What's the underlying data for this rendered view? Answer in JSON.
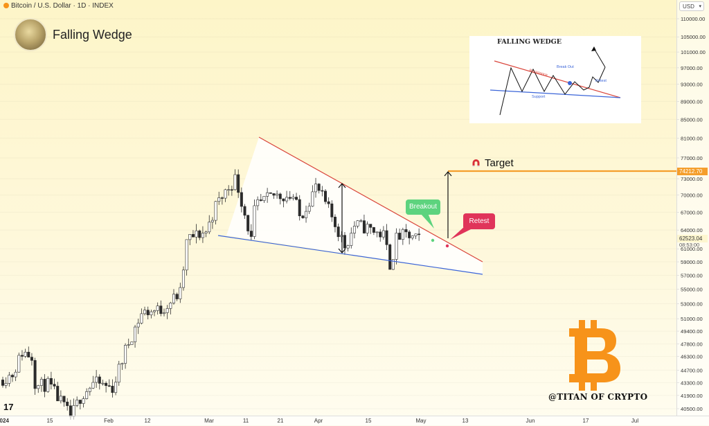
{
  "header": {
    "symbol_line": "Bitcoin / U.S. Dollar · 1D · INDEX"
  },
  "idea": {
    "title": "Falling Wedge",
    "watermark": "@TITAN OF CRYPTO",
    "tv_logo": "17"
  },
  "price_axis": {
    "currency": "USD",
    "target_tag": "74212.70",
    "last_price_tag": "62523.04",
    "countdown": "08:53:00"
  },
  "labels": {
    "target": "Target",
    "breakout": "Breakout",
    "retest": "Retest"
  },
  "inset": {
    "title": "FALLING WEDGE",
    "resistance": "Resistance",
    "support": "Support",
    "breakout": "Break Out",
    "retest": "Retest"
  },
  "colors": {
    "up_candle": "#ffffff",
    "down_candle": "#2b2b2b",
    "resistance": "#d9453b",
    "support": "#3a64d8",
    "target_line": "#f59e2b",
    "breakout": "#5dd37e",
    "retest": "#e0345a",
    "bitcoin": "#f7931a"
  },
  "chart_data": {
    "type": "candlestick",
    "interval": "1D",
    "scale": "log",
    "y_tick_labels": [
      "40500.00",
      "41900.00",
      "43300.00",
      "44700.00",
      "46300.00",
      "47800.00",
      "49400.00",
      "51000.00",
      "53000.00",
      "55000.00",
      "57000.00",
      "59000.00",
      "61000.00",
      "64000.00",
      "67000.00",
      "70000.00",
      "73000.00",
      "77000.00",
      "81000.00",
      "85000.00",
      "89000.00",
      "93000.00",
      "97000.00",
      "101000.00",
      "105000.00",
      "110000.00"
    ],
    "x_tick_labels": [
      "2024",
      "15",
      "Feb",
      "12",
      "Mar",
      "11",
      "21",
      "Apr",
      "15",
      "May",
      "13",
      "Jun",
      "17",
      "Jul"
    ],
    "key_levels": {
      "target": 74212.7,
      "last_price": 62523.04
    },
    "trendlines": {
      "resistance": [
        [
          "2024-03-14",
          81000
        ],
        [
          "2024-05-20",
          58900
        ]
      ],
      "support": [
        [
          "2024-03-01",
          62800
        ],
        [
          "2024-05-20",
          56900
        ]
      ]
    },
    "price_path": [
      [
        "2024-01-01",
        43600
      ],
      [
        "2024-01-05",
        44300
      ],
      [
        "2024-01-08",
        46900
      ],
      [
        "2024-01-11",
        46300
      ],
      [
        "2024-01-12",
        42900
      ],
      [
        "2024-01-16",
        43100
      ],
      [
        "2024-01-19",
        41600
      ],
      [
        "2024-01-23",
        39600
      ],
      [
        "2024-01-26",
        41800
      ],
      [
        "2024-01-30",
        43300
      ],
      [
        "2024-02-05",
        42700
      ],
      [
        "2024-02-09",
        47200
      ],
      [
        "2024-02-14",
        51800
      ],
      [
        "2024-02-20",
        52200
      ],
      [
        "2024-02-26",
        54500
      ],
      [
        "2024-02-28",
        62500
      ],
      [
        "2024-03-05",
        63800
      ],
      [
        "2024-03-08",
        68300
      ],
      [
        "2024-03-12",
        71500
      ],
      [
        "2024-03-14",
        73100
      ],
      [
        "2024-03-19",
        62000
      ],
      [
        "2024-03-20",
        67900
      ],
      [
        "2024-03-26",
        70000
      ],
      [
        "2024-03-29",
        69900
      ],
      [
        "2024-04-01",
        69700
      ],
      [
        "2024-04-03",
        66000
      ],
      [
        "2024-04-08",
        71600
      ],
      [
        "2024-04-12",
        67200
      ],
      [
        "2024-04-17",
        61300
      ],
      [
        "2024-04-20",
        64900
      ],
      [
        "2024-04-24",
        64300
      ],
      [
        "2024-04-29",
        63100
      ],
      [
        "2024-05-01",
        58300
      ],
      [
        "2024-05-03",
        62900
      ],
      [
        "2024-05-06",
        63100
      ],
      [
        "2024-05-09",
        62500
      ]
    ]
  }
}
